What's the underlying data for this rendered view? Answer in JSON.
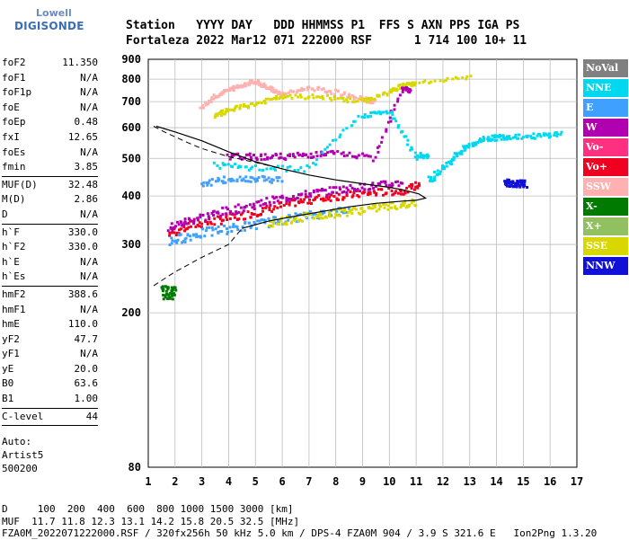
{
  "logo": {
    "line1": "Lowell",
    "line2": "DIGISONDE"
  },
  "header": {
    "line1": "Station   YYYY DAY   DDD HHMMSS P1  FFS S AXN PPS IGA PS",
    "line2": "Fortaleza 2022 Mar12 071 222000 RSF      1 714 100 10+ 11"
  },
  "params": [
    {
      "k": "foF2",
      "v": "11.350"
    },
    {
      "k": "foF1",
      "v": "N/A"
    },
    {
      "k": "foF1p",
      "v": "N/A"
    },
    {
      "k": "foE",
      "v": "N/A"
    },
    {
      "k": "foEp",
      "v": "0.48"
    },
    {
      "k": "fxI",
      "v": "12.65"
    },
    {
      "k": "foEs",
      "v": "N/A"
    },
    {
      "k": "fmin",
      "v": "3.85"
    },
    {
      "sep": true
    },
    {
      "k": "MUF(D)",
      "v": "32.48"
    },
    {
      "k": "M(D)",
      "v": "2.86"
    },
    {
      "k": "D",
      "v": "N/A"
    },
    {
      "sep": true
    },
    {
      "k": "h`F",
      "v": "330.0"
    },
    {
      "k": "h`F2",
      "v": "330.0"
    },
    {
      "k": "h`E",
      "v": "N/A"
    },
    {
      "k": "h`Es",
      "v": "N/A"
    },
    {
      "sep": true
    },
    {
      "k": "hmF2",
      "v": "388.6"
    },
    {
      "k": "hmF1",
      "v": "N/A"
    },
    {
      "k": "hmE",
      "v": "110.0"
    },
    {
      "k": "yF2",
      "v": "47.7"
    },
    {
      "k": "yF1",
      "v": "N/A"
    },
    {
      "k": "yE",
      "v": "20.0"
    },
    {
      "k": "B0",
      "v": "63.6"
    },
    {
      "k": "B1",
      "v": "1.00"
    },
    {
      "sep": true
    },
    {
      "k": "C-level",
      "v": "44"
    },
    {
      "sep": true
    }
  ],
  "auto": {
    "line1": "Auto:",
    "line2": "Artist5",
    "line3": "500200"
  },
  "legend": [
    {
      "label": "NoVal",
      "color": "#808080"
    },
    {
      "label": "NNE",
      "color": "#00d8f0"
    },
    {
      "label": "E",
      "color": "#3fa0ff"
    },
    {
      "label": "W",
      "color": "#b000b0"
    },
    {
      "label": "Vo-",
      "color": "#ff3080"
    },
    {
      "label": "Vo+",
      "color": "#f00020"
    },
    {
      "label": "SSW",
      "color": "#ffb0b0"
    },
    {
      "label": "X-",
      "color": "#007a00"
    },
    {
      "label": "X+",
      "color": "#90c060"
    },
    {
      "label": "SSE",
      "color": "#d8d800"
    },
    {
      "label": "NNW",
      "color": "#1010d8"
    }
  ],
  "footer": {
    "line1": "D     100  200  400  600  800 1000 1500 3000 [km]",
    "line2": "MUF  11.7 11.8 12.3 13.1 14.2 15.8 20.5 32.5 [MHz]",
    "line3": "FZA0M_2022071222000.RSF / 320fx256h 50 kHz 5.0 km / DPS-4 FZA0M 904 / 3.9 S 321.6 E   Ion2Png 1.3.20"
  },
  "chart_data": {
    "type": "scatter",
    "title": "",
    "xlabel": "",
    "ylabel": "",
    "xlim": [
      1,
      17
    ],
    "ylim": [
      80,
      900
    ],
    "y_scale": "log",
    "x_ticks": [
      1,
      2,
      3,
      4,
      5,
      6,
      7,
      8,
      9,
      10,
      11,
      12,
      13,
      14,
      15,
      16,
      17
    ],
    "y_ticks": [
      80,
      200,
      300,
      400,
      500,
      600,
      700,
      800,
      900
    ],
    "grid": true,
    "profile_solid": [
      [
        4.5,
        330
      ],
      [
        5.5,
        345
      ],
      [
        6.5,
        355
      ],
      [
        7.5,
        365
      ],
      [
        8.5,
        375
      ],
      [
        9.5,
        383
      ],
      [
        10.5,
        388
      ],
      [
        11.0,
        390
      ],
      [
        11.35,
        395
      ],
      [
        11.1,
        405
      ],
      [
        10.5,
        415
      ],
      [
        10,
        421
      ],
      [
        9,
        430
      ],
      [
        8,
        440
      ],
      [
        7,
        453
      ],
      [
        6,
        470
      ],
      [
        5,
        490
      ],
      [
        4,
        520
      ],
      [
        3,
        555
      ],
      [
        2,
        585
      ],
      [
        1.3,
        605
      ]
    ],
    "profile_dashed_lower": [
      [
        1.2,
        235
      ],
      [
        2,
        255
      ],
      [
        3,
        278
      ],
      [
        4,
        300
      ],
      [
        4.5,
        330
      ]
    ],
    "profile_dashed_upper": [
      [
        1.2,
        605
      ],
      [
        1.6,
        585
      ],
      [
        2,
        568
      ],
      [
        2.5,
        548
      ],
      [
        3,
        530
      ],
      [
        4,
        505
      ],
      [
        5,
        488
      ],
      [
        6,
        470
      ]
    ],
    "traces": [
      {
        "name": "Vo+",
        "pts": [
          [
            1.8,
            320
          ],
          [
            2.5,
            335
          ],
          [
            3.5,
            345
          ],
          [
            4.5,
            355
          ],
          [
            5.5,
            370
          ],
          [
            6.5,
            385
          ],
          [
            7.5,
            395
          ],
          [
            8.5,
            402
          ],
          [
            9.5,
            408
          ],
          [
            10.5,
            412
          ],
          [
            11.2,
            430
          ]
        ]
      },
      {
        "name": "W",
        "pts": [
          [
            1.8,
            330
          ],
          [
            2.5,
            345
          ],
          [
            3.5,
            360
          ],
          [
            4.5,
            372
          ],
          [
            5.5,
            388
          ],
          [
            6.5,
            400
          ],
          [
            7.5,
            410
          ],
          [
            8.5,
            418
          ],
          [
            9.5,
            425
          ],
          [
            10.5,
            433
          ]
        ]
      },
      {
        "name": "E",
        "pts": [
          [
            1.8,
            305
          ],
          [
            2.5,
            315
          ],
          [
            3.5,
            325
          ],
          [
            4.5,
            333
          ],
          [
            5.5,
            342
          ],
          [
            6.5,
            352
          ],
          [
            7.5,
            360
          ],
          [
            8.5,
            368
          ]
        ]
      },
      {
        "name": "SSE",
        "pts": [
          [
            5.5,
            340
          ],
          [
            6.5,
            350
          ],
          [
            7.5,
            358
          ],
          [
            8.5,
            365
          ],
          [
            9.5,
            372
          ],
          [
            10.5,
            380
          ],
          [
            11,
            385
          ]
        ]
      },
      {
        "name": "NNE",
        "pts": [
          [
            11.5,
            440
          ],
          [
            12,
            470
          ],
          [
            12.5,
            510
          ],
          [
            13,
            540
          ],
          [
            13.5,
            560
          ],
          [
            14,
            565
          ],
          [
            14.5,
            570
          ],
          [
            15.5,
            570
          ],
          [
            16.5,
            580
          ]
        ]
      },
      {
        "name": "NNW",
        "pts": [
          [
            14.3,
            432
          ],
          [
            14.6,
            431
          ],
          [
            14.9,
            430
          ],
          [
            15.1,
            430
          ]
        ]
      },
      {
        "name": "X-",
        "pts": [
          [
            1.5,
            225
          ],
          [
            1.8,
            225
          ],
          [
            2.0,
            225
          ]
        ]
      },
      {
        "name": "SSW",
        "pts": [
          [
            3,
            680
          ],
          [
            3.5,
            720
          ],
          [
            4,
            750
          ],
          [
            4.5,
            770
          ],
          [
            5,
            790
          ],
          [
            5.5,
            760
          ],
          [
            6,
            730
          ],
          [
            7,
            760
          ],
          [
            8,
            740
          ],
          [
            9,
            710
          ],
          [
            9.5,
            700
          ]
        ]
      },
      {
        "name": "SSE",
        "pts": [
          [
            3.5,
            640
          ],
          [
            4,
            665
          ],
          [
            5,
            690
          ],
          [
            6,
            720
          ],
          [
            7.5,
            720
          ],
          [
            9,
            700
          ],
          [
            10,
            740
          ],
          [
            10.5,
            770
          ],
          [
            11,
            780
          ],
          [
            13.2,
            810
          ]
        ]
      },
      {
        "name": "W",
        "pts": [
          [
            4,
            505
          ],
          [
            5,
            505
          ],
          [
            6,
            505
          ],
          [
            7,
            510
          ],
          [
            8,
            515
          ],
          [
            9.5,
            500
          ],
          [
            10.5,
            760
          ],
          [
            10.8,
            745
          ]
        ]
      },
      {
        "name": "NNE",
        "pts": [
          [
            3.5,
            480
          ],
          [
            5,
            470
          ],
          [
            7,
            470
          ],
          [
            9,
            645
          ],
          [
            10,
            660
          ],
          [
            11,
            505
          ],
          [
            11.5,
            510
          ]
        ]
      },
      {
        "name": "E",
        "pts": [
          [
            3,
            430
          ],
          [
            4,
            440
          ],
          [
            5,
            445
          ],
          [
            6,
            440
          ]
        ]
      }
    ]
  }
}
